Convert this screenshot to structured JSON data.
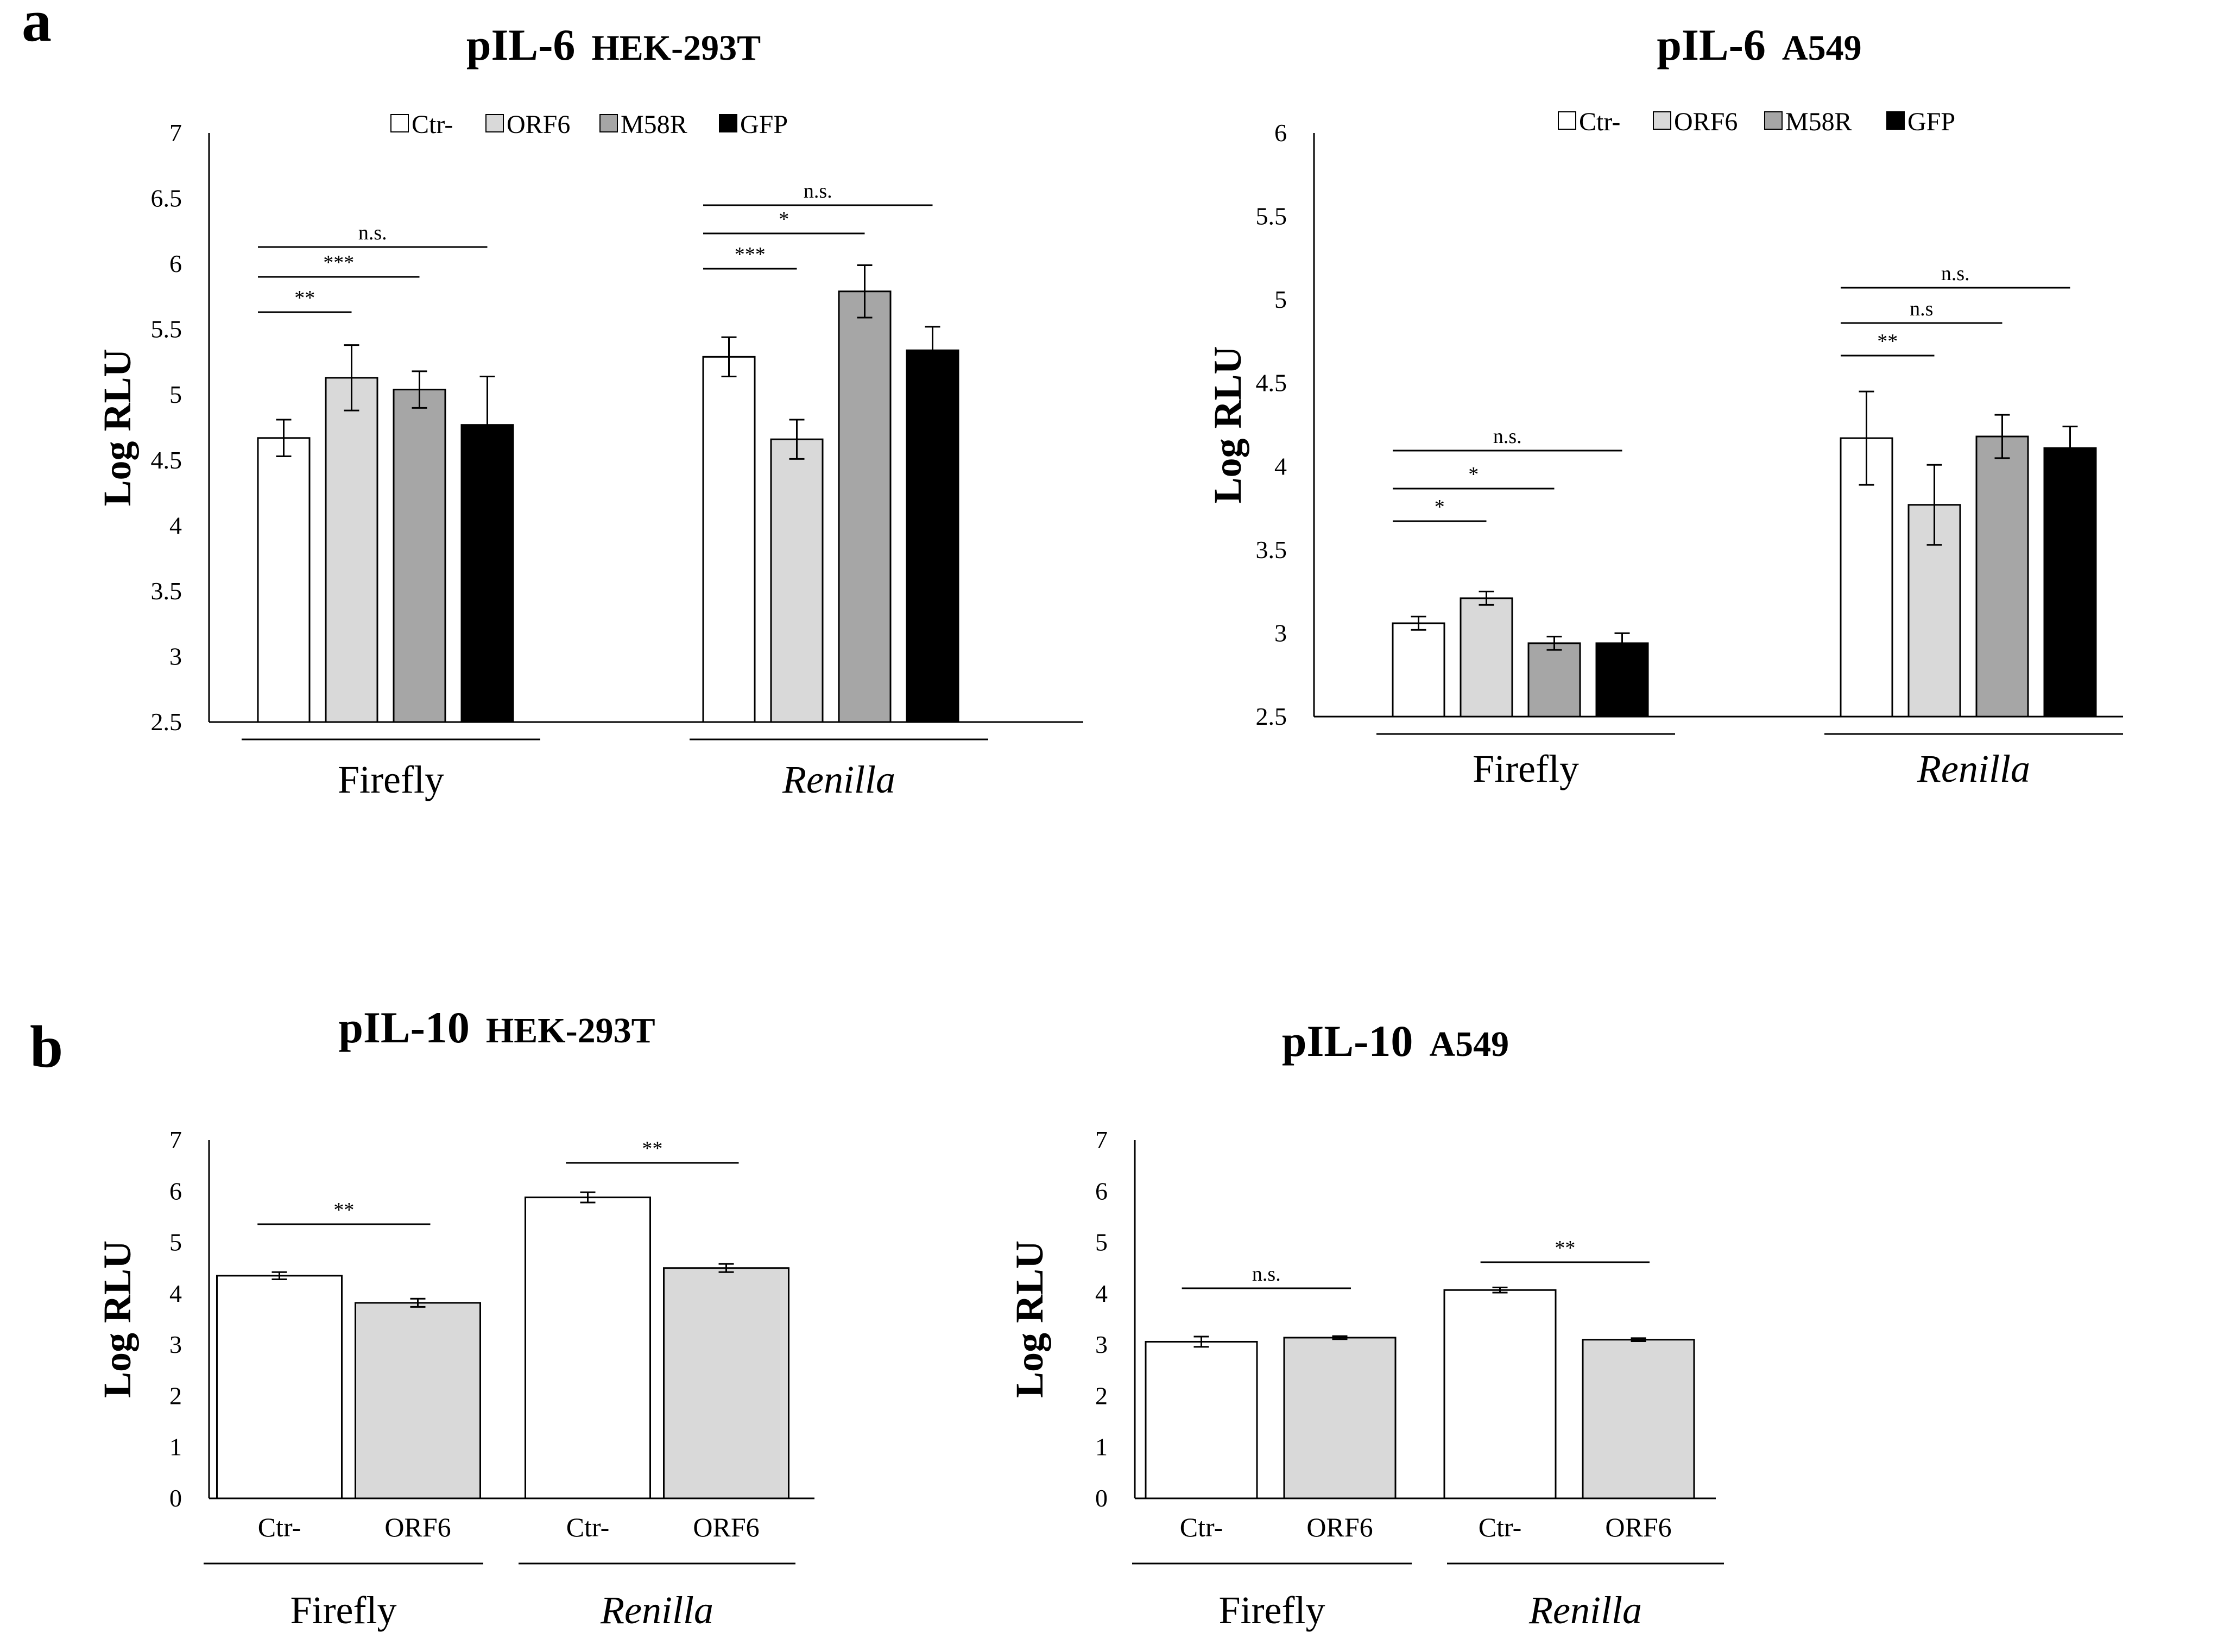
{
  "panel_labels": [
    "a",
    "b"
  ],
  "colors": {
    "Ctr-": "#ffffff",
    "ORF6": "#d9d9d9",
    "M58R": "#a6a6a6",
    "GFP": "#000000",
    "axis": "#000000"
  },
  "chart_data": [
    {
      "type": "bar",
      "panel": "a",
      "title": "pIL-6",
      "title_cell": "HEK-293T",
      "ylabel": "Log RLU",
      "ylim": [
        2.5,
        7
      ],
      "yticks": [
        "2.5",
        "3",
        "3.5",
        "4",
        "4.5",
        "5",
        "5.5",
        "6",
        "6.5",
        "7"
      ],
      "legend": [
        "Ctr-",
        "ORF6",
        "M58R",
        "GFP"
      ],
      "groups": [
        "Firefly",
        "Renilla"
      ],
      "group_italic": [
        false,
        true
      ],
      "series": [
        {
          "name": "Ctr-",
          "values": [
            4.67,
            5.29
          ],
          "errors": [
            0.14,
            0.15
          ]
        },
        {
          "name": "ORF6",
          "values": [
            5.13,
            4.66
          ],
          "errors": [
            0.25,
            0.15
          ]
        },
        {
          "name": "M58R",
          "values": [
            5.04,
            5.79
          ],
          "errors": [
            0.14,
            0.2
          ]
        },
        {
          "name": "GFP",
          "values": [
            4.77,
            5.34
          ],
          "errors": [
            0.37,
            0.18
          ]
        }
      ],
      "significance": [
        {
          "group": 0,
          "from": 0,
          "to": 1,
          "label": "**"
        },
        {
          "group": 0,
          "from": 0,
          "to": 2,
          "label": "***"
        },
        {
          "group": 0,
          "from": 0,
          "to": 3,
          "label": "n.s."
        },
        {
          "group": 1,
          "from": 0,
          "to": 1,
          "label": "***"
        },
        {
          "group": 1,
          "from": 0,
          "to": 2,
          "label": "*"
        },
        {
          "group": 1,
          "from": 0,
          "to": 3,
          "label": "n.s."
        }
      ]
    },
    {
      "type": "bar",
      "panel": "a",
      "title": "pIL-6",
      "title_cell": "A549",
      "ylabel": "Log RLU",
      "ylim": [
        2.5,
        6
      ],
      "yticks": [
        "2.5",
        "3",
        "3.5",
        "4",
        "4.5",
        "5",
        "5.5",
        "6"
      ],
      "legend": [
        "Ctr-",
        "ORF6",
        "M58R",
        "GFP"
      ],
      "groups": [
        "Firefly",
        "Renilla"
      ],
      "group_italic": [
        false,
        true
      ],
      "series": [
        {
          "name": "Ctr-",
          "values": [
            3.06,
            4.17
          ],
          "errors": [
            0.04,
            0.28
          ]
        },
        {
          "name": "ORF6",
          "values": [
            3.21,
            3.77
          ],
          "errors": [
            0.04,
            0.24
          ]
        },
        {
          "name": "M58R",
          "values": [
            2.94,
            4.18
          ],
          "errors": [
            0.04,
            0.13
          ]
        },
        {
          "name": "GFP",
          "values": [
            2.94,
            4.11
          ],
          "errors": [
            0.06,
            0.13
          ]
        }
      ],
      "significance": [
        {
          "group": 0,
          "from": 0,
          "to": 1,
          "label": "*"
        },
        {
          "group": 0,
          "from": 0,
          "to": 2,
          "label": "*"
        },
        {
          "group": 0,
          "from": 0,
          "to": 3,
          "label": "n.s."
        },
        {
          "group": 1,
          "from": 0,
          "to": 1,
          "label": "**"
        },
        {
          "group": 1,
          "from": 0,
          "to": 2,
          "label": "n.s"
        },
        {
          "group": 1,
          "from": 0,
          "to": 3,
          "label": "n.s."
        }
      ]
    },
    {
      "type": "bar",
      "panel": "b",
      "title": "pIL-10",
      "title_cell": "HEK-293T",
      "ylabel": "Log RLU",
      "ylim": [
        0,
        7
      ],
      "yticks": [
        "0",
        "1",
        "2",
        "3",
        "4",
        "5",
        "6",
        "7"
      ],
      "legend": [],
      "groups": [
        "Firefly",
        "Renilla"
      ],
      "group_italic": [
        false,
        true
      ],
      "category_labels": [
        "Ctr-",
        "ORF6",
        "Ctr-",
        "ORF6"
      ],
      "series": [
        {
          "name": "Ctr-",
          "values": [
            4.35,
            5.88
          ],
          "errors": [
            0.07,
            0.1
          ]
        },
        {
          "name": "ORF6",
          "values": [
            3.82,
            4.5
          ],
          "errors": [
            0.08,
            0.08
          ]
        }
      ],
      "significance": [
        {
          "group": 0,
          "from": 0,
          "to": 1,
          "label": "**"
        },
        {
          "group": 1,
          "from": 0,
          "to": 1,
          "label": "**"
        }
      ]
    },
    {
      "type": "bar",
      "panel": "b",
      "title": "pIL-10",
      "title_cell": "A549",
      "ylabel": "Log RLU",
      "ylim": [
        0,
        7
      ],
      "yticks": [
        "0",
        "1",
        "2",
        "3",
        "4",
        "5",
        "6",
        "7"
      ],
      "legend": [],
      "groups": [
        "Firefly",
        "Renilla"
      ],
      "group_italic": [
        false,
        true
      ],
      "category_labels": [
        "Ctr-",
        "ORF6",
        "Ctr-",
        "ORF6"
      ],
      "series": [
        {
          "name": "Ctr-",
          "values": [
            3.06,
            4.07
          ],
          "errors": [
            0.1,
            0.05
          ]
        },
        {
          "name": "ORF6",
          "values": [
            3.14,
            3.1
          ],
          "errors": [
            0.03,
            0.03
          ]
        }
      ],
      "significance": [
        {
          "group": 0,
          "from": 0,
          "to": 1,
          "label": "n.s."
        },
        {
          "group": 1,
          "from": 0,
          "to": 1,
          "label": "**"
        }
      ]
    }
  ]
}
